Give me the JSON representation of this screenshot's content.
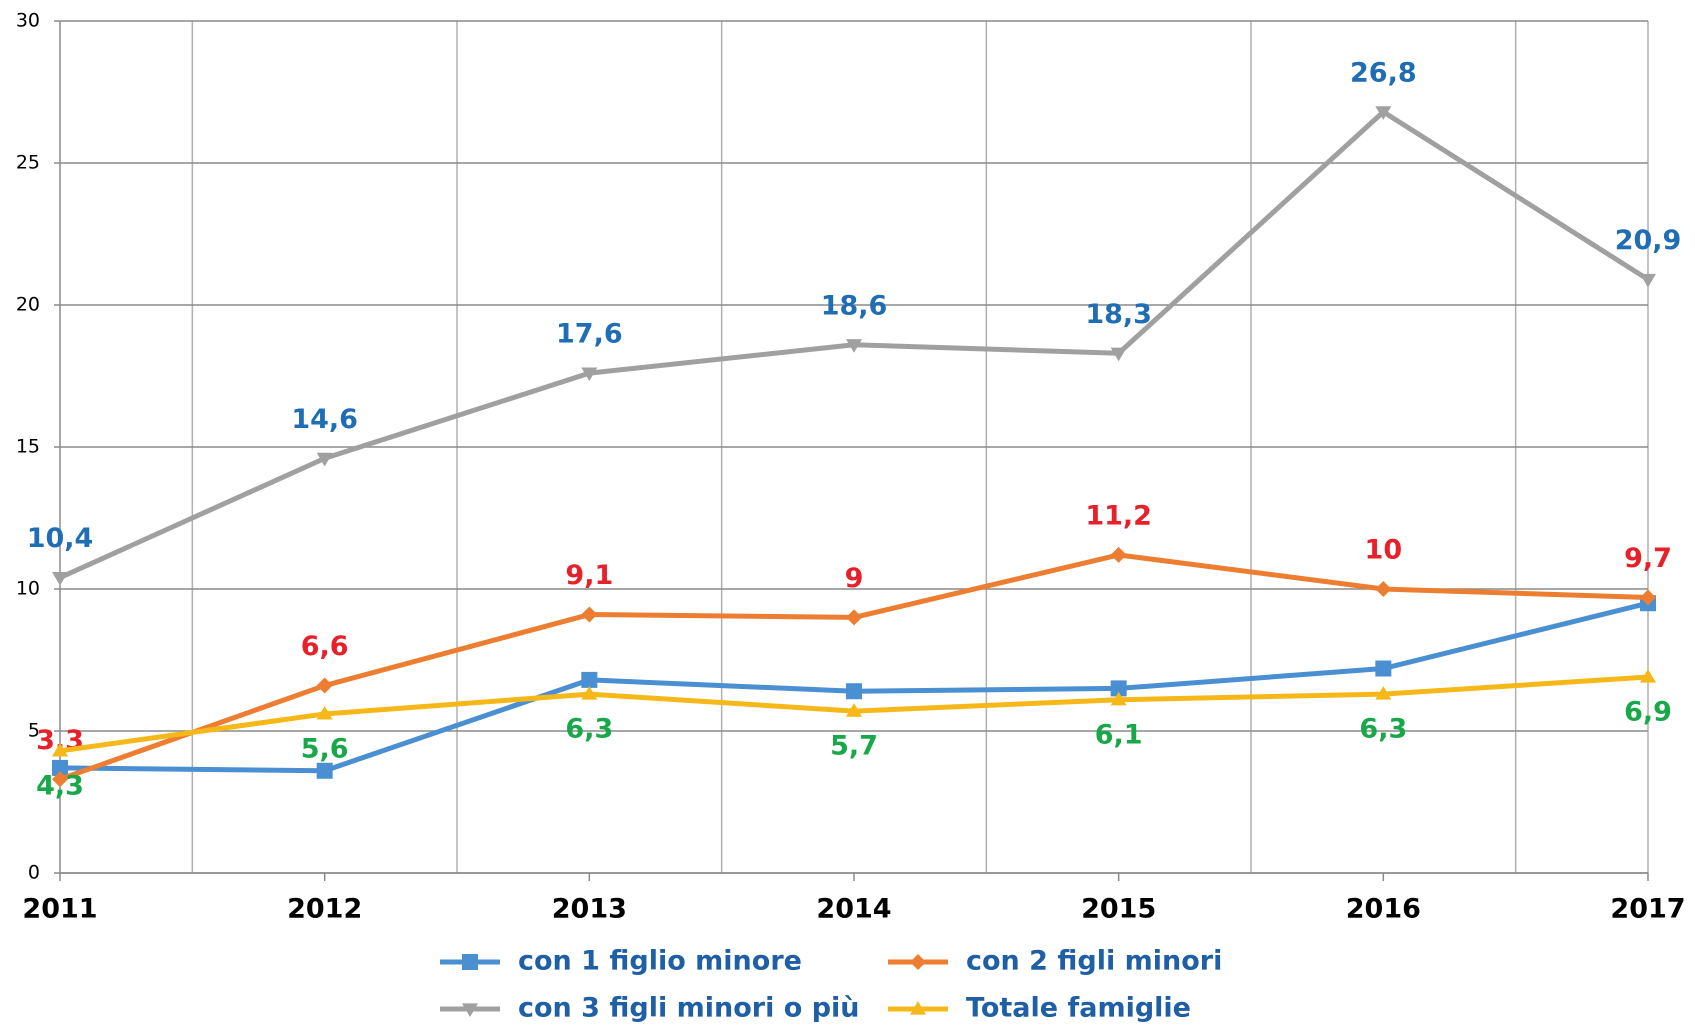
{
  "chart_data": {
    "type": "line",
    "categories": [
      "2011",
      "2012",
      "2013",
      "2014",
      "2015",
      "2016",
      "2017"
    ],
    "ylim": [
      0,
      30
    ],
    "yticks": [
      0,
      5,
      10,
      15,
      20,
      25,
      30
    ],
    "grid": true,
    "series": [
      {
        "name": "con 1 figlio minore",
        "color": "#4a8fd2",
        "marker": "square",
        "values": [
          3.7,
          3.6,
          6.8,
          6.4,
          6.5,
          7.2,
          9.5
        ]
      },
      {
        "name": "con 2 figli minori",
        "color": "#ed7d31",
        "marker": "diamond",
        "label_color": "#e8202a",
        "values": [
          3.3,
          6.6,
          9.1,
          9,
          11.2,
          10,
          9.7
        ],
        "value_labels": [
          "3,3",
          "6,6",
          "9,1",
          "9",
          "11,2",
          "10",
          "9,7"
        ]
      },
      {
        "name": "con 3 figli minori o più",
        "color": "#a0a0a0",
        "marker": "triangle-down",
        "label_color": "#1f6db5",
        "values": [
          10.4,
          14.6,
          17.6,
          18.6,
          18.3,
          26.8,
          20.9
        ],
        "value_labels": [
          "10,4",
          "14,6",
          "17,6",
          "18,6",
          "18,3",
          "26,8",
          "20,9"
        ]
      },
      {
        "name": "Totale famiglie",
        "color": "#f6b819",
        "marker": "triangle-up",
        "label_color": "#18a84a",
        "values": [
          4.3,
          5.6,
          6.3,
          5.7,
          6.1,
          6.3,
          6.9
        ],
        "value_labels": [
          "4,3",
          "5,6",
          "6,3",
          "5,7",
          "6,1",
          "6,3",
          "6,9"
        ]
      }
    ]
  }
}
